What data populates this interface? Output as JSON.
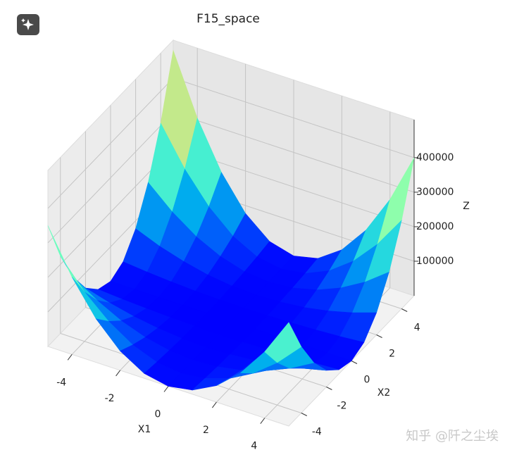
{
  "chart_data": {
    "type": "surface3d",
    "title": "F15_space",
    "xlabel": "X1",
    "ylabel": "X2",
    "zlabel": "Z",
    "xlim": [
      -5,
      5
    ],
    "ylim": [
      -5,
      5
    ],
    "zlim": [
      0,
      510000
    ],
    "xticks": [
      -4,
      -2,
      0,
      2,
      4
    ],
    "yticks": [
      -4,
      -2,
      0,
      2,
      4
    ],
    "zticks": [
      100000,
      200000,
      300000,
      400000
    ],
    "colormap": "rainbow",
    "grid": true,
    "x": [
      -5,
      -4,
      -3,
      -2,
      -1,
      0,
      1,
      2,
      3,
      4,
      5
    ],
    "y": [
      -5,
      -4,
      -3,
      -2,
      -1,
      0,
      1,
      2,
      3,
      4,
      5
    ],
    "z": [
      [
        350000,
        224000,
        126000,
        56000,
        14000,
        0,
        12000,
        48000,
        108000,
        192000,
        300000
      ],
      [
        224000,
        143000,
        81000,
        36000,
        9000,
        0,
        8000,
        31000,
        69000,
        123000,
        192000
      ],
      [
        126000,
        81000,
        45000,
        20000,
        5000,
        0,
        4000,
        17000,
        39000,
        69000,
        108000
      ],
      [
        56000,
        36000,
        20000,
        9000,
        2000,
        0,
        2000,
        8000,
        17000,
        31000,
        48000
      ],
      [
        14000,
        9000,
        5000,
        2000,
        1000,
        0,
        0,
        2000,
        4000,
        8000,
        12000
      ],
      [
        0,
        0,
        0,
        0,
        0,
        0,
        0,
        0,
        0,
        0,
        0
      ],
      [
        19000,
        12000,
        7000,
        3000,
        1000,
        0,
        1000,
        3000,
        6000,
        10000,
        16000
      ],
      [
        77000,
        49000,
        28000,
        12000,
        3000,
        0,
        3000,
        10000,
        23000,
        41000,
        64000
      ],
      [
        173000,
        111000,
        62000,
        28000,
        7000,
        0,
        6000,
        23000,
        52000,
        92000,
        144000
      ],
      [
        307000,
        197000,
        111000,
        49000,
        12000,
        0,
        10000,
        41000,
        92000,
        164000,
        256000
      ],
      [
        480000,
        307000,
        173000,
        77000,
        19000,
        0,
        16000,
        64000,
        144000,
        256000,
        400000
      ]
    ]
  },
  "watermark": "知乎 @阡之尘埃"
}
